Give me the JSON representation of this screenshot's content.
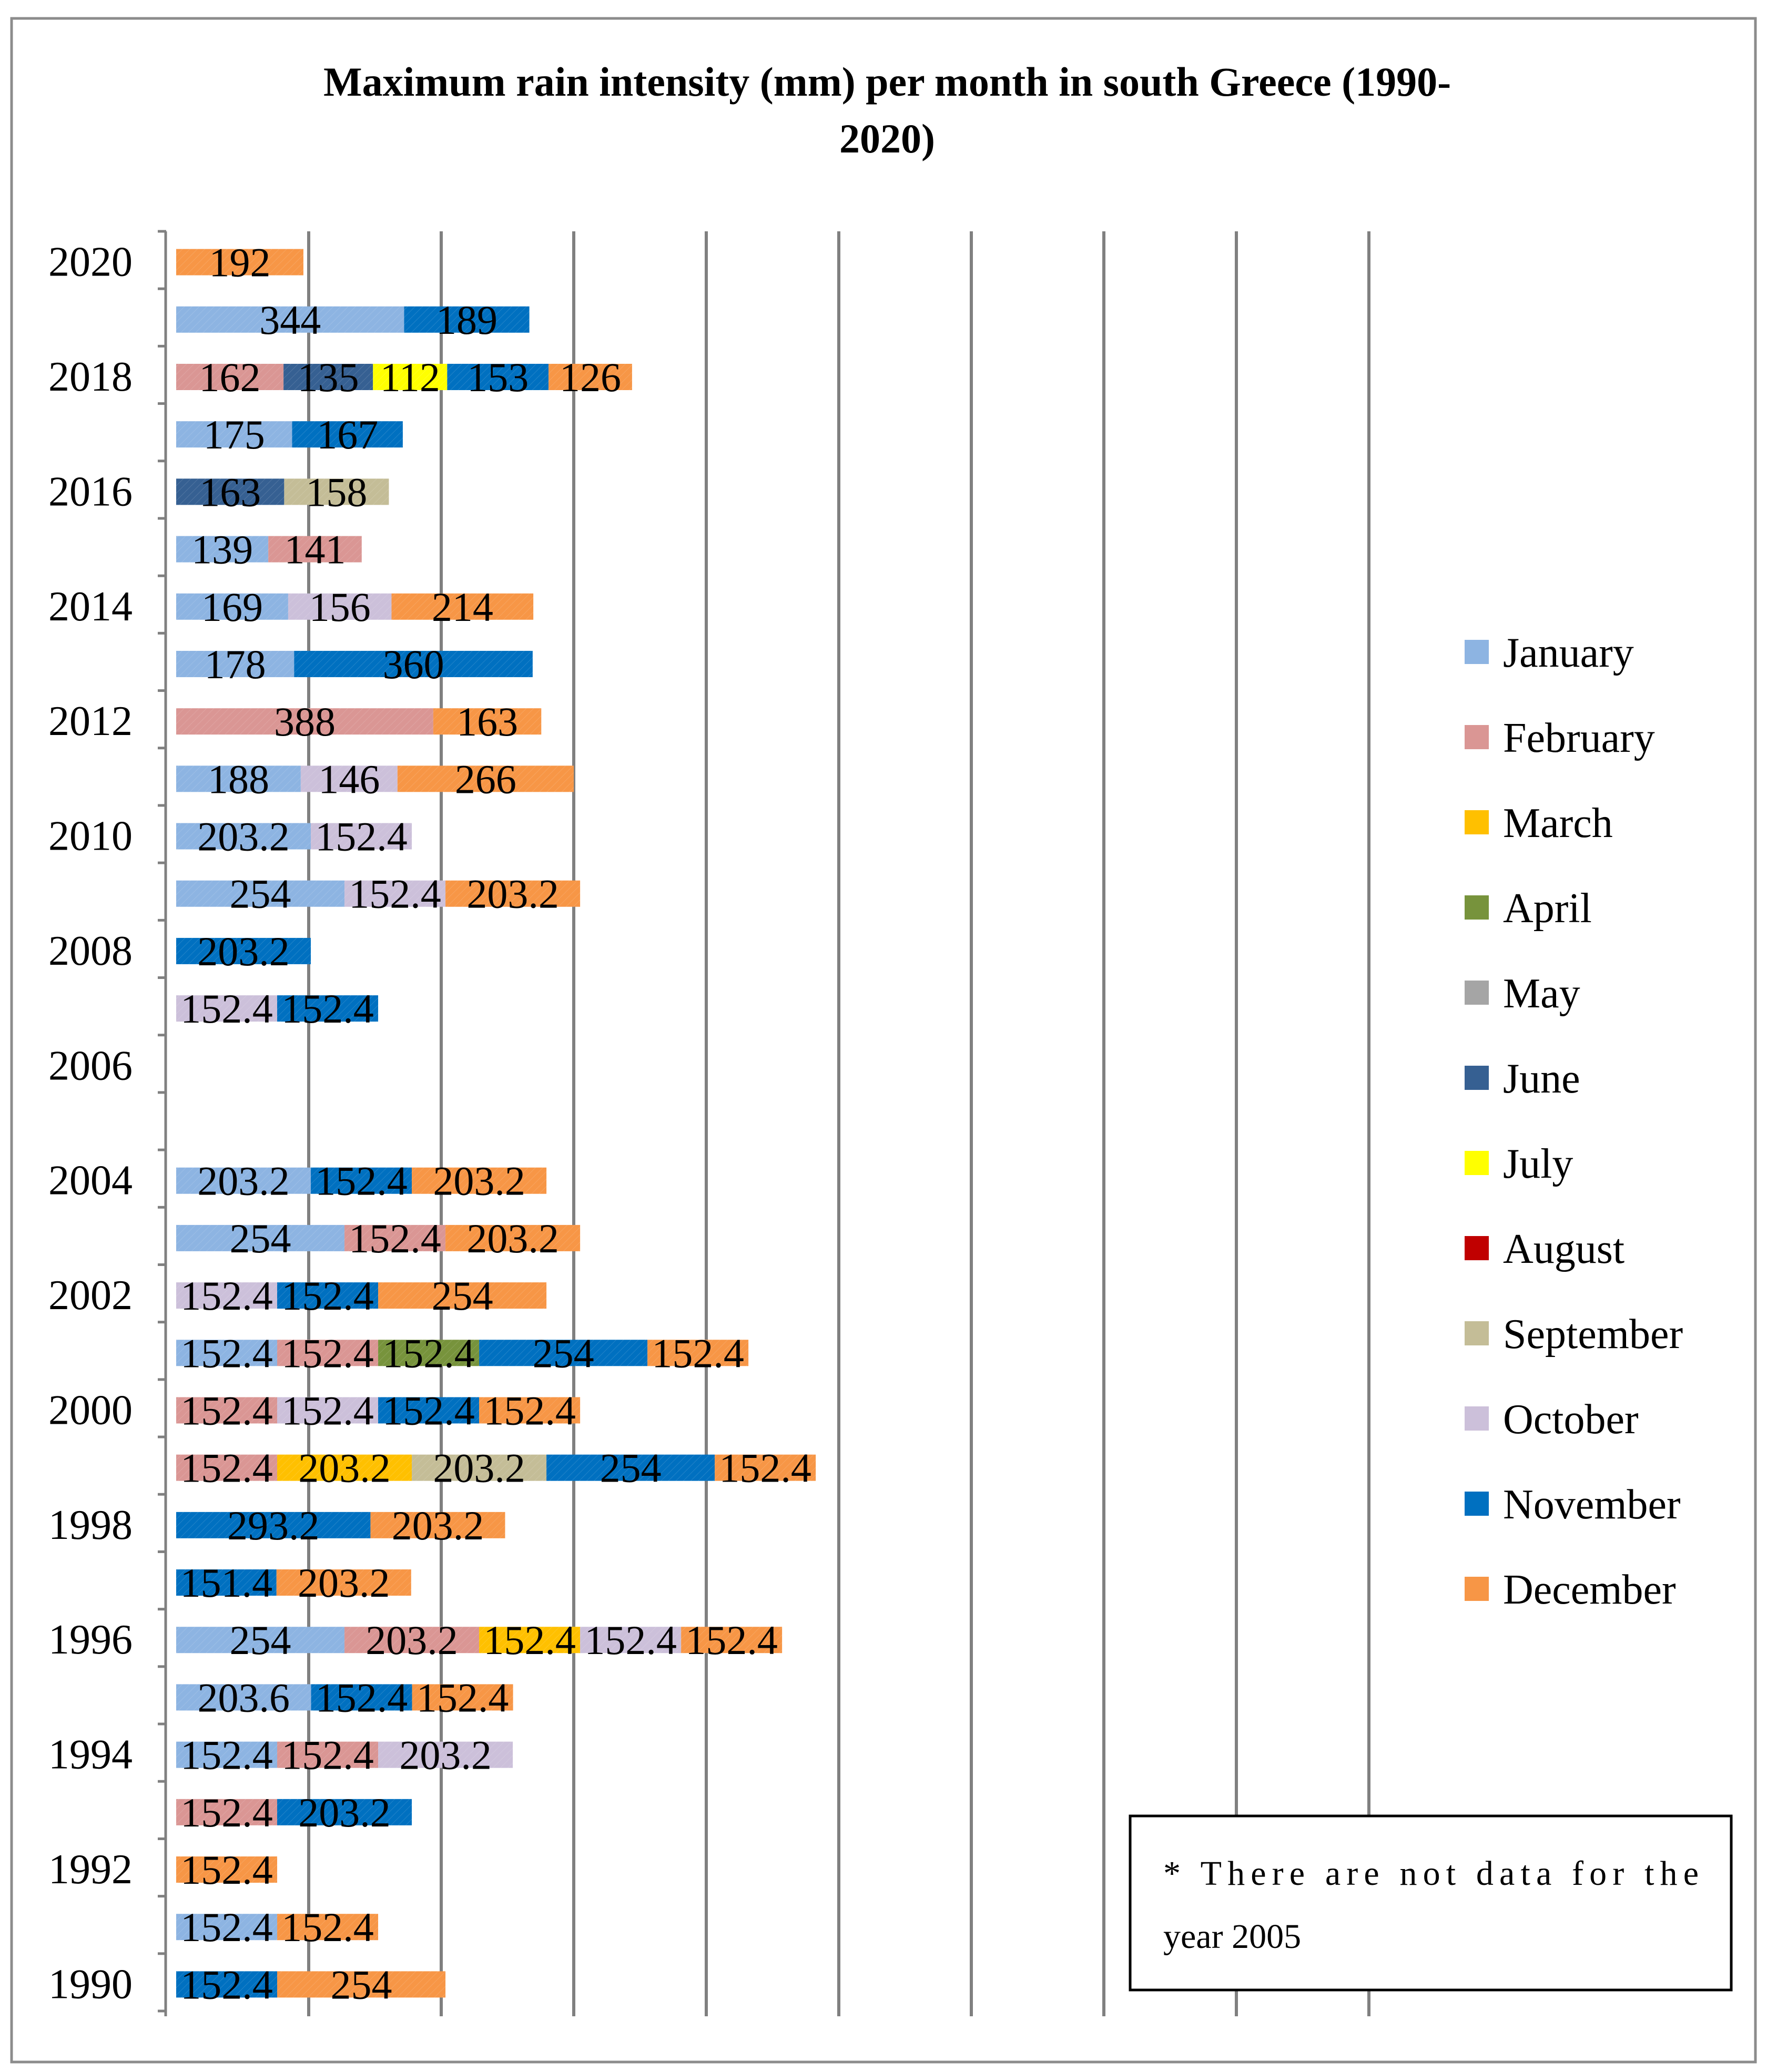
{
  "chart_data": {
    "type": "bar",
    "orientation": "horizontal",
    "stacked": true,
    "title": "Maximum rain intensity (mm) per month in south Greece (1990-2020)",
    "title_lines": [
      "Maximum rain intensity (mm) per month in south Greece (1990-",
      "2020)"
    ],
    "xlabel": "",
    "ylabel": "",
    "xlim": [
      0,
      2000
    ],
    "x_gridline_interval": 200,
    "grid": true,
    "legend_position": "right",
    "tick_labels": [
      "1990",
      "1992",
      "1994",
      "1996",
      "1998",
      "2000",
      "2002",
      "2004",
      "2006",
      "2008",
      "2010",
      "2012",
      "2014",
      "2016",
      "2018",
      "2020"
    ],
    "categories": [
      "1990",
      "1991",
      "1992",
      "1993",
      "1994",
      "1995",
      "1996",
      "1997",
      "1998",
      "1999",
      "2000",
      "2001",
      "2002",
      "2003",
      "2004",
      "2005",
      "2006",
      "2007",
      "2008",
      "2009",
      "2010",
      "2011",
      "2012",
      "2013",
      "2014",
      "2015",
      "2016",
      "2017",
      "2018",
      "2019",
      "2020"
    ],
    "series": [
      {
        "name": "January",
        "color": "#8DB4E2",
        "values": {
          "1991": 152.4,
          "1994": 152.4,
          "1995": 203.6,
          "1996": 254,
          "2001": 152.4,
          "2003": 254,
          "2004": 203.2,
          "2009": 254,
          "2010": 203.2,
          "2011": 188,
          "2013": 178,
          "2014": 169,
          "2015": 139,
          "2017": 175,
          "2019": 344
        }
      },
      {
        "name": "February",
        "color": "#DA9694",
        "values": {
          "1993": 152.4,
          "1994": 152.4,
          "1996": 203.2,
          "1999": 152.4,
          "2000": 152.4,
          "2001": 152.4,
          "2003": 152.4,
          "2012": 388,
          "2015": 141,
          "2018": 162
        }
      },
      {
        "name": "March",
        "color": "#FFC000",
        "values": {
          "1996": 152.4,
          "1999": 203.2
        }
      },
      {
        "name": "April",
        "color": "#77933C",
        "values": {
          "2001": 152.4
        }
      },
      {
        "name": "May",
        "color": "#A5A5A5",
        "values": {}
      },
      {
        "name": "June",
        "color": "#366092",
        "values": {
          "2016": 163,
          "2018": 135
        }
      },
      {
        "name": "July",
        "color": "#FFFF00",
        "values": {
          "2018": 112
        }
      },
      {
        "name": "August",
        "color": "#C00000",
        "values": {}
      },
      {
        "name": "September",
        "color": "#C4BD97",
        "values": {
          "1999": 203.2,
          "2016": 158
        }
      },
      {
        "name": "October",
        "color": "#CCC0DA",
        "values": {
          "1994": 203.2,
          "1996": 152.4,
          "2000": 152.4,
          "2002": 152.4,
          "2007": 152.4,
          "2009": 152.4,
          "2010": 152.4,
          "2011": 146,
          "2014": 156
        }
      },
      {
        "name": "November",
        "color": "#0070C0",
        "values": {
          "1990": 152.4,
          "1993": 203.2,
          "1995": 152.4,
          "1997": 151.4,
          "1998": 293.2,
          "1999": 254,
          "2000": 152.4,
          "2001": 254,
          "2002": 152.4,
          "2004": 152.4,
          "2007": 152.4,
          "2008": 203.2,
          "2013": 360,
          "2017": 167,
          "2018": 153,
          "2019": 189
        }
      },
      {
        "name": "December",
        "color": "#F79646",
        "values": {
          "1990": 254,
          "1991": 152.4,
          "1992": 152.4,
          "1995": 152.4,
          "1996": 152.4,
          "1997": 203.2,
          "1998": 203.2,
          "1999": 152.4,
          "2000": 152.4,
          "2001": 152.4,
          "2002": 254,
          "2003": 203.2,
          "2004": 203.2,
          "2009": 203.2,
          "2011": 266,
          "2012": 163,
          "2014": 214,
          "2018": 126,
          "2020": 192
        }
      }
    ],
    "annotation": "* There are not data for the year 2005"
  }
}
